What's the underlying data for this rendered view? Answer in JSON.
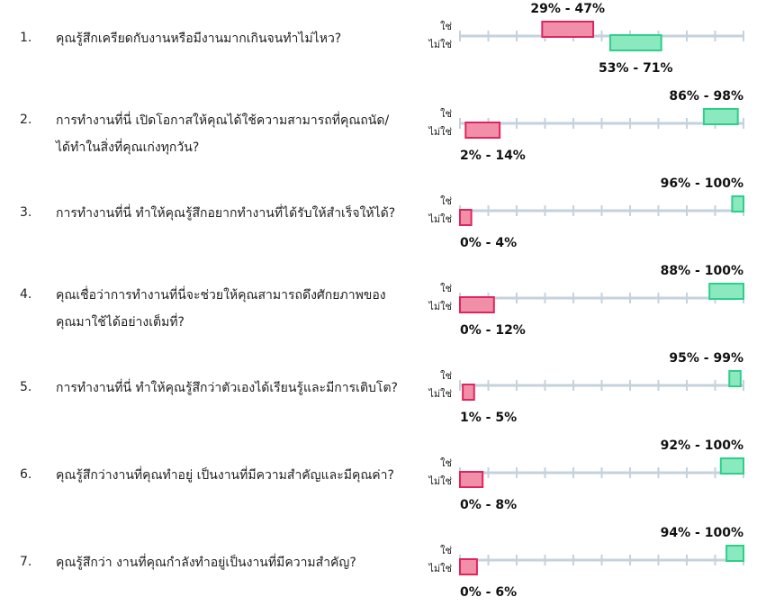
{
  "labels": {
    "yes": "ใช่",
    "no": "ไม่ใช่"
  },
  "colors": {
    "yes_fill": "#8ae9be",
    "yes_stroke": "#2ecf8a",
    "no_fill": "#f28fa8",
    "no_stroke": "#e0245e",
    "axis": "#c5d2dd"
  },
  "questions": [
    {
      "number": "1.",
      "lines": [
        "คุณรู้สึกเครียดกับงานหรือมีงานมากเกินจนทำไม่ไหว?"
      ]
    },
    {
      "number": "2.",
      "lines": [
        "การทำงานที่นี่ เปิดโอกาสให้คุณได้ใช้ความสามารถที่คุณถนัด/",
        "ได้ทำในสิ่งที่คุณเก่งทุกวัน?"
      ]
    },
    {
      "number": "3.",
      "lines": [
        "การทำงานที่นี่ ทำให้คุณรู้สึกอยากทำงานที่ได้รับให้สำเร็จให้ได้?"
      ]
    },
    {
      "number": "4.",
      "lines": [
        "คุณเชื่อว่าการทำงานที่นี่จะช่วยให้คุณสามารถดึงศักยภาพของ",
        "คุณมาใช้ได้อย่างเต็มที่?"
      ]
    },
    {
      "number": "5.",
      "lines": [
        "การทำงานที่นี่ ทำให้คุณรู้สึกว่าตัวเองได้เรียนรู้และมีการเติบโต?"
      ]
    },
    {
      "number": "6.",
      "lines": [
        "คุณรู้สึกว่างานที่คุณทำอยู่ เป็นงานที่มีความสำคัญและมีคุณค่า?"
      ]
    },
    {
      "number": "7.",
      "lines": [
        "คุณรู้สึกว่า งานที่คุณกำลังทำอยู่เป็นงานที่มีความสำคัญ?"
      ]
    }
  ],
  "chart_data": {
    "type": "range",
    "xlim": [
      0,
      100
    ],
    "grid": false,
    "tick_count": 11,
    "series": [
      {
        "name": "ใช่",
        "ranges": [
          [
            29,
            47
          ],
          [
            86,
            98
          ],
          [
            96,
            100
          ],
          [
            88,
            100
          ],
          [
            95,
            99
          ],
          [
            92,
            100
          ],
          [
            94,
            100
          ]
        ],
        "labels": [
          "29% - 47%",
          "86% - 98%",
          "96% - 100%",
          "88% - 100%",
          "95% - 99%",
          "92% - 100%",
          "94% - 100%"
        ]
      },
      {
        "name": "ไม่ใช่",
        "ranges": [
          [
            53,
            71
          ],
          [
            2,
            14
          ],
          [
            0,
            4
          ],
          [
            0,
            12
          ],
          [
            1,
            5
          ],
          [
            0,
            8
          ],
          [
            0,
            6
          ]
        ],
        "labels": [
          "53% - 71%",
          "2% - 14%",
          "0% - 4%",
          "0% - 12%",
          "1% - 5%",
          "0% - 8%",
          "0% - 6%"
        ]
      }
    ]
  }
}
